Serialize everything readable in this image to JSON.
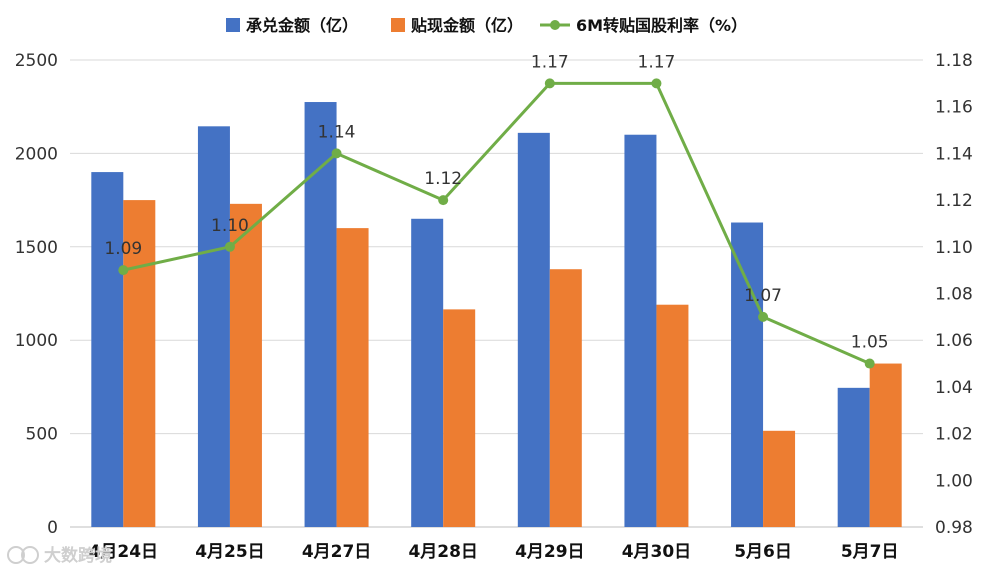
{
  "chart_data": {
    "type": "bar",
    "categories": [
      "4月24日",
      "4月25日",
      "4月27日",
      "4月28日",
      "4月29日",
      "4月30日",
      "5月6日",
      "5月7日"
    ],
    "series": [
      {
        "name": "承兑金额（亿）",
        "type": "bar",
        "axis": "left",
        "color": "#4472C4",
        "values": [
          1900,
          2145,
          2275,
          1650,
          2110,
          2100,
          1630,
          745
        ]
      },
      {
        "name": "贴现金额（亿）",
        "type": "bar",
        "axis": "left",
        "color": "#ED7D31",
        "values": [
          1750,
          1730,
          1600,
          1165,
          1380,
          1190,
          515,
          875
        ]
      },
      {
        "name": "6M转贴国股利率（%）",
        "type": "line",
        "axis": "right",
        "color": "#70AD47",
        "values": [
          1.09,
          1.1,
          1.14,
          1.12,
          1.17,
          1.17,
          1.07,
          1.05
        ],
        "labels": [
          "1.09",
          "1.10",
          "1.14",
          "1.12",
          "1.17",
          "1.17",
          "1.07",
          "1.05"
        ]
      }
    ],
    "y_left": {
      "ylim": [
        0,
        2500
      ],
      "ticks": [
        "0",
        "500",
        "1000",
        "1500",
        "2000",
        "2500"
      ]
    },
    "y_right": {
      "ylim": [
        0.98,
        1.18
      ],
      "ticks": [
        "0.98",
        "1.00",
        "1.02",
        "1.04",
        "1.06",
        "1.08",
        "1.10",
        "1.12",
        "1.14",
        "1.16",
        "1.18"
      ]
    },
    "grid": true,
    "legend_position": "top"
  },
  "watermark": "大数跨境"
}
